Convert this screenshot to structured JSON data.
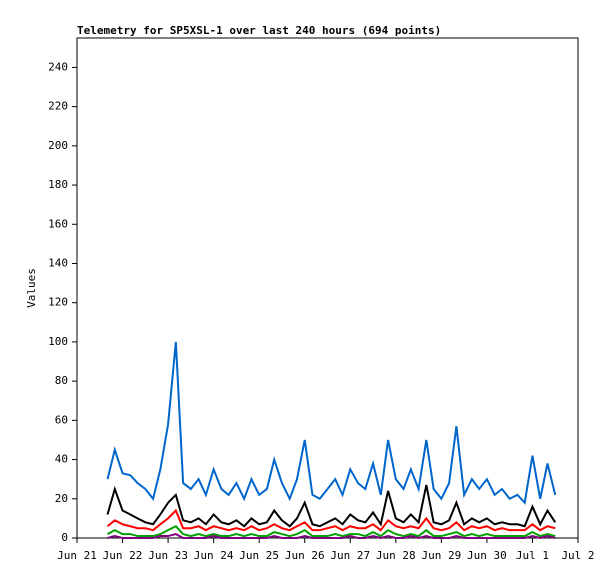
{
  "chart_data": {
    "type": "line",
    "title": "Telemetry for SP5XSL-1 over last 240 hours (694 points)",
    "y_label": "Values",
    "xlim": [
      21,
      32
    ],
    "xticks": [
      {
        "value": 21,
        "label": "Jun 21"
      },
      {
        "value": 22,
        "label": "Jun 22"
      },
      {
        "value": 23,
        "label": "Jun 23"
      },
      {
        "value": 24,
        "label": "Jun 24"
      },
      {
        "value": 25,
        "label": "Jun 25"
      },
      {
        "value": 26,
        "label": "Jun 26"
      },
      {
        "value": 27,
        "label": "Jun 27"
      },
      {
        "value": 28,
        "label": "Jun 28"
      },
      {
        "value": 29,
        "label": "Jun 29"
      },
      {
        "value": 30,
        "label": "Jun 30"
      },
      {
        "value": 31,
        "label": "Jul 1"
      },
      {
        "value": 32,
        "label": "Jul 2"
      }
    ],
    "ylim": [
      0,
      255
    ],
    "yticks": [
      0,
      20,
      40,
      60,
      80,
      100,
      120,
      140,
      160,
      180,
      200,
      220,
      240
    ],
    "grid": false,
    "x": [
      21.67,
      21.83,
      22.0,
      22.17,
      22.33,
      22.5,
      22.67,
      22.83,
      23.0,
      23.17,
      23.33,
      23.5,
      23.67,
      23.83,
      24.0,
      24.17,
      24.33,
      24.5,
      24.67,
      24.83,
      25.0,
      25.17,
      25.33,
      25.5,
      25.67,
      25.83,
      26.0,
      26.17,
      26.33,
      26.5,
      26.67,
      26.83,
      27.0,
      27.17,
      27.33,
      27.5,
      27.67,
      27.83,
      28.0,
      28.17,
      28.33,
      28.5,
      28.67,
      28.83,
      29.0,
      29.17,
      29.33,
      29.5,
      29.67,
      29.83,
      30.0,
      30.17,
      30.33,
      30.5,
      30.67,
      30.83,
      31.0,
      31.17,
      31.33,
      31.5
    ],
    "series": [
      {
        "color": "#0066cc",
        "values": [
          30,
          45,
          33,
          32,
          28,
          25,
          20,
          35,
          58,
          100,
          28,
          25,
          30,
          22,
          35,
          25,
          22,
          28,
          20,
          30,
          22,
          25,
          40,
          28,
          20,
          30,
          50,
          22,
          20,
          25,
          30,
          22,
          35,
          28,
          25,
          38,
          22,
          50,
          30,
          25,
          35,
          25,
          50,
          25,
          20,
          28,
          57,
          22,
          30,
          25,
          30,
          22,
          25,
          20,
          22,
          18,
          42,
          20,
          38,
          22
        ]
      },
      {
        "color": "#000000",
        "values": [
          12,
          25,
          14,
          12,
          10,
          8,
          7,
          12,
          18,
          22,
          9,
          8,
          10,
          7,
          12,
          8,
          7,
          9,
          6,
          10,
          7,
          8,
          14,
          9,
          6,
          10,
          18,
          7,
          6,
          8,
          10,
          7,
          12,
          9,
          8,
          13,
          7,
          24,
          10,
          8,
          12,
          8,
          27,
          8,
          7,
          9,
          18,
          7,
          10,
          8,
          10,
          7,
          8,
          7,
          7,
          6,
          16,
          7,
          14,
          8
        ]
      },
      {
        "color": "#ff0000",
        "values": [
          6,
          9,
          7,
          6,
          5,
          5,
          4,
          7,
          10,
          14,
          5,
          5,
          6,
          4,
          6,
          5,
          4,
          5,
          4,
          6,
          4,
          5,
          7,
          5,
          4,
          6,
          8,
          4,
          4,
          5,
          6,
          4,
          6,
          5,
          5,
          7,
          4,
          9,
          6,
          5,
          6,
          5,
          10,
          5,
          4,
          5,
          8,
          4,
          6,
          5,
          6,
          4,
          5,
          4,
          4,
          4,
          7,
          4,
          6,
          5
        ]
      },
      {
        "color": "#00a000",
        "values": [
          2,
          4,
          2,
          2,
          1,
          1,
          1,
          2,
          4,
          6,
          2,
          1,
          2,
          1,
          2,
          1,
          1,
          2,
          1,
          2,
          1,
          1,
          3,
          2,
          1,
          2,
          4,
          1,
          1,
          1,
          2,
          1,
          2,
          2,
          1,
          3,
          1,
          4,
          2,
          1,
          2,
          1,
          4,
          1,
          1,
          2,
          3,
          1,
          2,
          1,
          2,
          1,
          1,
          1,
          1,
          1,
          3,
          1,
          2,
          1
        ]
      },
      {
        "color": "#800080",
        "values": [
          0,
          1,
          0,
          0,
          0,
          0,
          0,
          1,
          1,
          2,
          0,
          0,
          0,
          0,
          1,
          0,
          0,
          0,
          0,
          0,
          0,
          0,
          1,
          0,
          0,
          0,
          1,
          0,
          0,
          0,
          0,
          0,
          1,
          0,
          0,
          1,
          0,
          1,
          0,
          0,
          1,
          0,
          1,
          0,
          0,
          0,
          1,
          0,
          0,
          0,
          0,
          0,
          0,
          0,
          0,
          0,
          1,
          0,
          1,
          0
        ]
      }
    ]
  }
}
